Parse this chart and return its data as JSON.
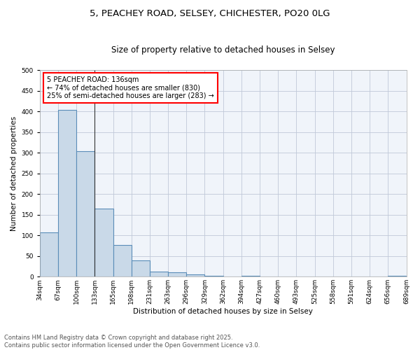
{
  "title_line1": "5, PEACHEY ROAD, SELSEY, CHICHESTER, PO20 0LG",
  "title_line2": "Size of property relative to detached houses in Selsey",
  "xlabel": "Distribution of detached houses by size in Selsey",
  "ylabel": "Number of detached properties",
  "bar_values": [
    107,
    404,
    304,
    165,
    76,
    39,
    13,
    10,
    6,
    3,
    0,
    3,
    0,
    0,
    0,
    0,
    0,
    0,
    0,
    3
  ],
  "bin_labels": [
    "34sqm",
    "67sqm",
    "100sqm",
    "133sqm",
    "165sqm",
    "198sqm",
    "231sqm",
    "263sqm",
    "296sqm",
    "329sqm",
    "362sqm",
    "394sqm",
    "427sqm",
    "460sqm",
    "493sqm",
    "525sqm",
    "558sqm",
    "591sqm",
    "624sqm",
    "656sqm",
    "689sqm"
  ],
  "bar_color": "#c9d9e8",
  "bar_edge_color": "#5b8db8",
  "bar_linewidth": 0.8,
  "annotation_text": "5 PEACHEY ROAD: 136sqm\n← 74% of detached houses are smaller (830)\n25% of semi-detached houses are larger (283) →",
  "annotation_box_color": "white",
  "annotation_box_edge_color": "red",
  "vline_x": 2.5,
  "vline_color": "#333333",
  "vline_linewidth": 0.8,
  "ylim": [
    0,
    500
  ],
  "yticks": [
    0,
    50,
    100,
    150,
    200,
    250,
    300,
    350,
    400,
    450,
    500
  ],
  "grid_color": "#c0c8d8",
  "background_color": "#f0f4fa",
  "footer_text": "Contains HM Land Registry data © Crown copyright and database right 2025.\nContains public sector information licensed under the Open Government Licence v3.0.",
  "title_fontsize": 9.5,
  "subtitle_fontsize": 8.5,
  "axis_label_fontsize": 7.5,
  "tick_fontsize": 6.5,
  "annotation_fontsize": 7,
  "footer_fontsize": 6
}
